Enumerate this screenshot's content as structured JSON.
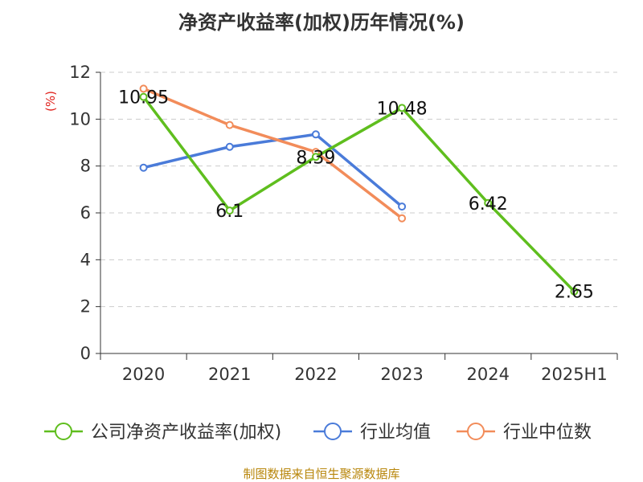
{
  "chart_data": {
    "type": "line",
    "title": "净资产收益率(加权)历年情况(%)",
    "ylabel": "(%)",
    "xlabel": "",
    "categories": [
      "2020",
      "2021",
      "2022",
      "2023",
      "2024",
      "2025H1"
    ],
    "ylim": [
      0,
      12
    ],
    "yticks": [
      0,
      2,
      4,
      6,
      8,
      10,
      12
    ],
    "grid": true,
    "legend_position": "bottom",
    "series": [
      {
        "name": "公司净资产收益率(加权)",
        "color": "#5fbe1e",
        "values": [
          10.95,
          6.1,
          8.39,
          10.48,
          6.42,
          2.65
        ],
        "data_labels": [
          "10.95",
          "6.1",
          "8.39",
          "10.48",
          "6.42",
          "2.65"
        ]
      },
      {
        "name": "行业均值",
        "color": "#4a7bd9",
        "values": [
          7.93,
          8.82,
          9.35,
          6.27,
          null,
          null
        ]
      },
      {
        "name": "行业中位数",
        "color": "#f28c5a",
        "values": [
          11.3,
          9.75,
          8.6,
          5.77,
          null,
          null
        ]
      }
    ],
    "source": "制图数据来自恒生聚源数据库"
  }
}
